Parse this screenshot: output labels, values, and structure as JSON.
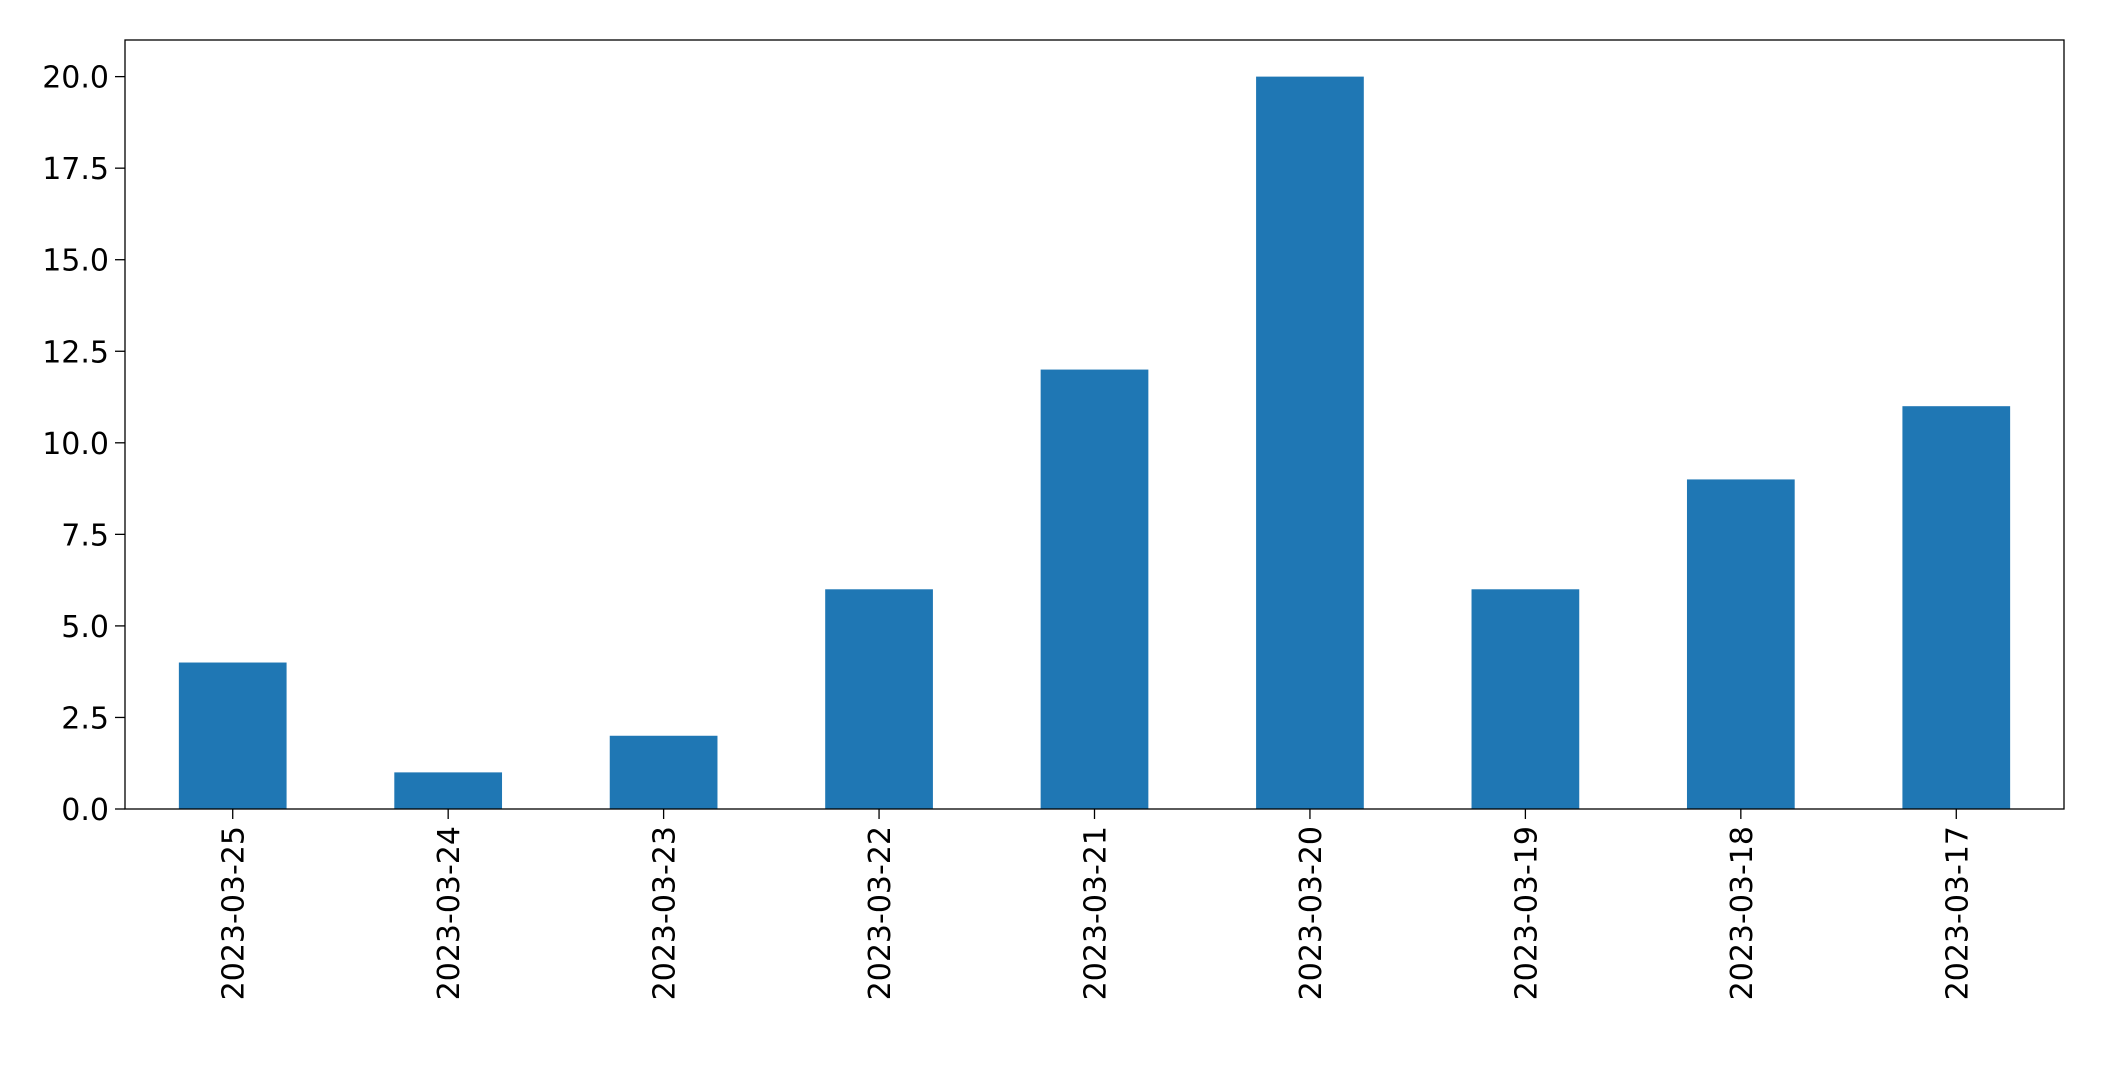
{
  "chart_data": {
    "type": "bar",
    "title": "",
    "xlabel": "",
    "ylabel": "",
    "categories": [
      "2023-03-25",
      "2023-03-24",
      "2023-03-23",
      "2023-03-22",
      "2023-03-21",
      "2023-03-20",
      "2023-03-19",
      "2023-03-18",
      "2023-03-17"
    ],
    "values": [
      4,
      1,
      2,
      6,
      12,
      20,
      6,
      9,
      11
    ],
    "ylim": [
      0,
      21
    ],
    "yticks": [
      "0.0",
      "2.5",
      "5.0",
      "7.5",
      "10.0",
      "12.5",
      "15.0",
      "17.5",
      "20.0"
    ],
    "grid": false,
    "legend": "none",
    "bar_color": "#1f77b4"
  }
}
